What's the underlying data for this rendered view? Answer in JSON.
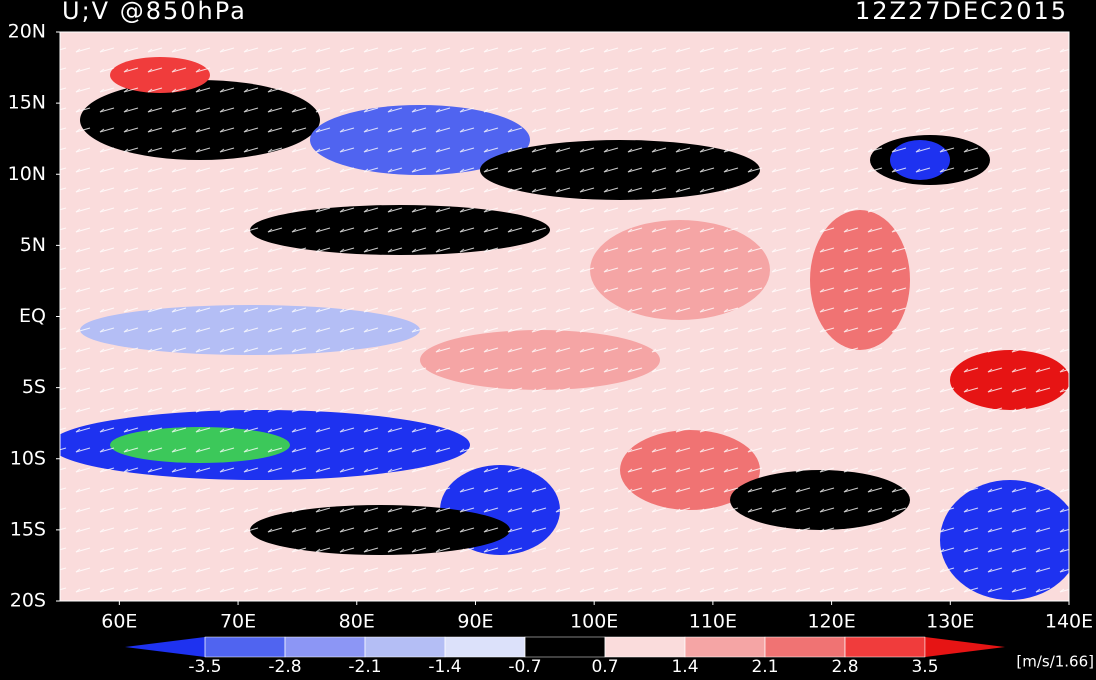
{
  "map": {
    "title": "U;V @850hPa",
    "time": "12Z27DEC2015",
    "latlim": [
      -20,
      20
    ],
    "lonlim": [
      55,
      140
    ],
    "lat_ticks": [
      {
        "value": 20,
        "label": "20N"
      },
      {
        "value": 15,
        "label": "15N"
      },
      {
        "value": 10,
        "label": "10N"
      },
      {
        "value": 5,
        "label": "5N"
      },
      {
        "value": 0,
        "label": "EQ"
      },
      {
        "value": -5,
        "label": "5S"
      },
      {
        "value": -10,
        "label": "10S"
      },
      {
        "value": -15,
        "label": "15S"
      },
      {
        "value": -20,
        "label": "20S"
      }
    ],
    "lon_ticks": [
      {
        "value": 60,
        "label": "60E"
      },
      {
        "value": 70,
        "label": "70E"
      },
      {
        "value": 80,
        "label": "80E"
      },
      {
        "value": 90,
        "label": "90E"
      },
      {
        "value": 100,
        "label": "100E"
      },
      {
        "value": 110,
        "label": "110E"
      },
      {
        "value": 120,
        "label": "120E"
      },
      {
        "value": 130,
        "label": "130E"
      },
      {
        "value": 140,
        "label": "140E"
      }
    ],
    "colorbar": {
      "levels": [
        -3.5,
        -2.8,
        -2.1,
        -1.4,
        -0.7,
        0.7,
        1.4,
        2.1,
        2.8,
        3.5
      ],
      "colors": [
        "#1e32f0",
        "#5064f0",
        "#8c96f5",
        "#b4bef5",
        "#dce1fa",
        "#000000",
        "#fadcdc",
        "#f5a5a5",
        "#f07373",
        "#f03c3c",
        "#e61414"
      ],
      "unit": "[m/s/1.66]"
    }
  }
}
